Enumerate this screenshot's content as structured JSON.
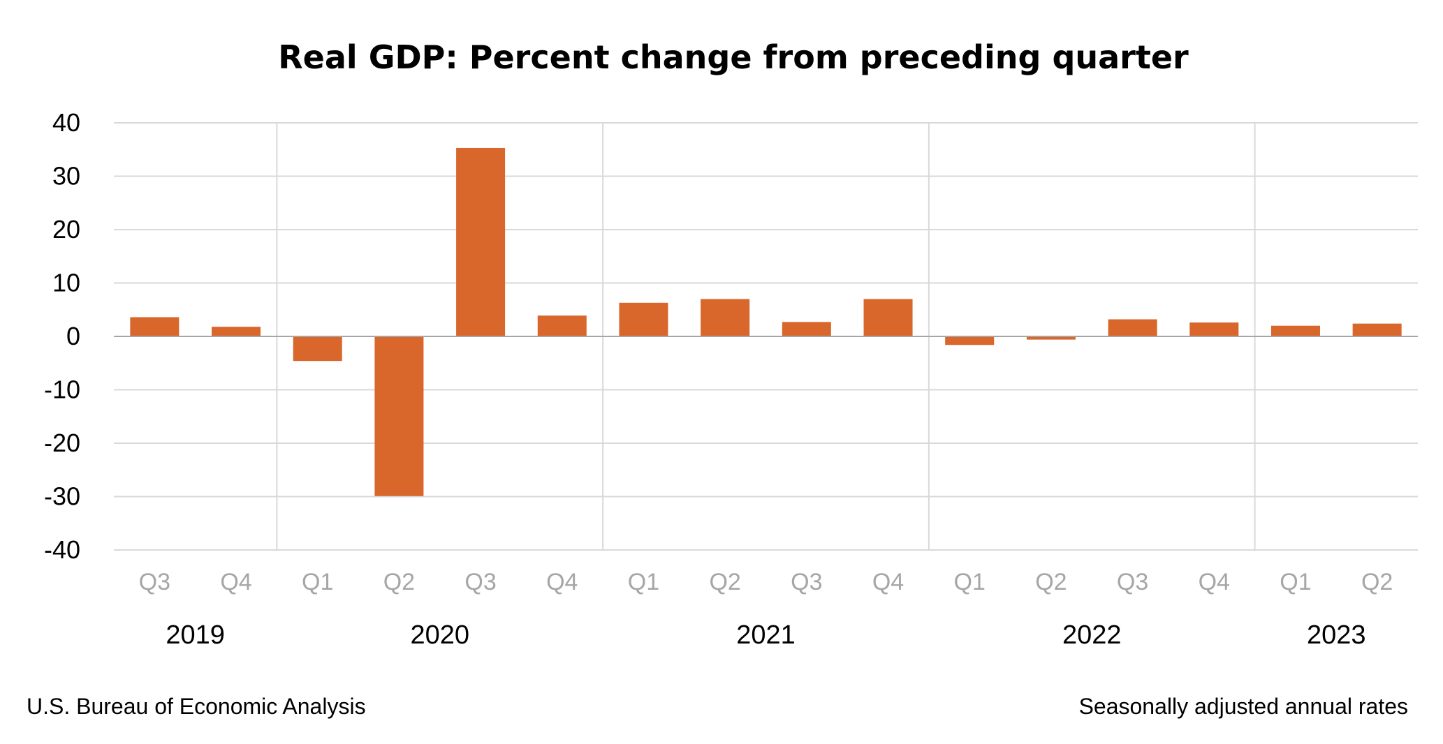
{
  "chart_data": {
    "type": "bar",
    "title": "Real GDP:  Percent change from preceding quarter",
    "xlabel": "",
    "ylabel": "",
    "ylim": [
      -40,
      40
    ],
    "yticks": [
      40,
      30,
      20,
      10,
      0,
      -10,
      -20,
      -30,
      -40
    ],
    "ytick_labels": [
      "40",
      "30",
      "20",
      "10",
      "0",
      "-10",
      "-20",
      "-30",
      "-40"
    ],
    "grid": true,
    "categories": [
      "Q3",
      "Q4",
      "Q1",
      "Q2",
      "Q3",
      "Q4",
      "Q1",
      "Q2",
      "Q3",
      "Q4",
      "Q1",
      "Q2",
      "Q3",
      "Q4",
      "Q1",
      "Q2"
    ],
    "values": [
      3.6,
      1.8,
      -4.6,
      -29.9,
      35.3,
      3.9,
      6.3,
      7.0,
      2.7,
      7.0,
      -1.6,
      -0.6,
      3.2,
      2.6,
      2.0,
      2.4
    ],
    "year_groups": [
      {
        "label": "2019",
        "start": 0,
        "end": 1
      },
      {
        "label": "2020",
        "start": 2,
        "end": 5
      },
      {
        "label": "2021",
        "start": 6,
        "end": 9
      },
      {
        "label": "2022",
        "start": 10,
        "end": 13
      },
      {
        "label": "2023",
        "start": 14,
        "end": 15
      }
    ]
  },
  "footer": {
    "source": "U.S. Bureau of Economic Analysis",
    "note": "Seasonally adjusted annual rates"
  },
  "colors": {
    "bar": "#d9662b",
    "grid": "#d9d9d9",
    "zero_line": "#a6a6a6",
    "quarter_label": "#a6a6a6",
    "text": "#000000"
  }
}
